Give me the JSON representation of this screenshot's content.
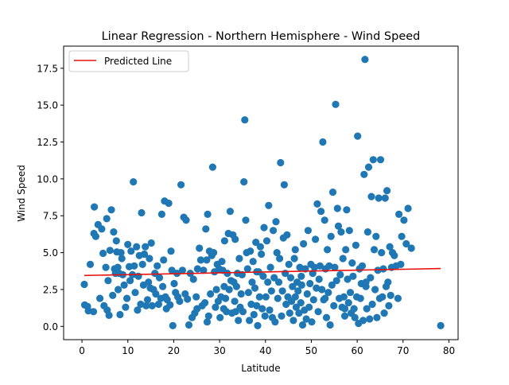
{
  "chart_data": {
    "type": "scatter",
    "title": "Linear Regression - Northern Hemisphere - Wind Speed",
    "xlabel": "Latitude",
    "ylabel": "Wind Speed",
    "xlim": [
      -4,
      82
    ],
    "ylim": [
      -0.9,
      19.0
    ],
    "xticks": [
      0,
      10,
      20,
      30,
      40,
      50,
      60,
      70,
      80
    ],
    "yticks": [
      0.0,
      2.5,
      5.0,
      7.5,
      10.0,
      12.5,
      15.0,
      17.5
    ],
    "xtick_labels": [
      "0",
      "10",
      "20",
      "30",
      "40",
      "50",
      "60",
      "70",
      "80"
    ],
    "ytick_labels": [
      "0.0",
      "2.5",
      "5.0",
      "7.5",
      "10.0",
      "12.5",
      "15.0",
      "17.5"
    ],
    "grid": false,
    "legend": {
      "location": "top-left",
      "entries": [
        "Predicted Line"
      ]
    },
    "marker_color": "#1f77b4",
    "line_color": "#e8130f",
    "regression_line": {
      "name": "Predicted Line",
      "x": [
        0.5,
        78.2
      ],
      "y": [
        3.45,
        3.92
      ]
    },
    "points": [
      [
        0.5,
        2.85
      ],
      [
        0.6,
        1.45
      ],
      [
        1.2,
        1.35
      ],
      [
        1.4,
        1.05
      ],
      [
        1.8,
        4.2
      ],
      [
        2.5,
        1.0
      ],
      [
        2.6,
        6.3
      ],
      [
        2.7,
        8.1
      ],
      [
        3.0,
        6.1
      ],
      [
        3.5,
        6.9
      ],
      [
        3.9,
        1.9
      ],
      [
        4.3,
        6.6
      ],
      [
        4.6,
        4.95
      ],
      [
        4.8,
        1.4
      ],
      [
        5.2,
        4.0
      ],
      [
        5.4,
        7.3
      ],
      [
        5.5,
        1.1
      ],
      [
        5.7,
        3.1
      ],
      [
        5.9,
        0.75
      ],
      [
        6.1,
        5.15
      ],
      [
        6.4,
        7.9
      ],
      [
        6.7,
        2.1
      ],
      [
        6.9,
        6.4
      ],
      [
        7.1,
        3.9
      ],
      [
        7.3,
        3.6
      ],
      [
        7.5,
        5.8
      ],
      [
        7.6,
        5.05
      ],
      [
        7.8,
        4.0
      ],
      [
        7.9,
        2.5
      ],
      [
        8.1,
        3.6
      ],
      [
        8.3,
        0.8
      ],
      [
        8.5,
        5.0
      ],
      [
        8.7,
        4.6
      ],
      [
        8.9,
        3.5
      ],
      [
        9.2,
        2.8
      ],
      [
        9.5,
        1.3
      ],
      [
        9.8,
        1.9
      ],
      [
        10.0,
        5.55
      ],
      [
        10.3,
        4.05
      ],
      [
        10.5,
        3.1
      ],
      [
        10.7,
        5.1
      ],
      [
        11.0,
        3.5
      ],
      [
        11.2,
        9.8
      ],
      [
        11.4,
        4.1
      ],
      [
        11.6,
        2.3
      ],
      [
        11.9,
        5.4
      ],
      [
        12.1,
        1.1
      ],
      [
        12.3,
        3.4
      ],
      [
        12.5,
        4.8
      ],
      [
        12.8,
        1.5
      ],
      [
        13.0,
        7.7
      ],
      [
        13.2,
        4.2
      ],
      [
        13.4,
        2.8
      ],
      [
        13.6,
        4.9
      ],
      [
        13.8,
        5.4
      ],
      [
        14.0,
        1.4
      ],
      [
        14.3,
        1.8
      ],
      [
        14.5,
        3.0
      ],
      [
        14.7,
        4.6
      ],
      [
        14.9,
        2.6
      ],
      [
        15.1,
        5.65
      ],
      [
        15.3,
        1.4
      ],
      [
        15.6,
        2.5
      ],
      [
        15.9,
        3.6
      ],
      [
        16.1,
        2.2
      ],
      [
        16.4,
        4.1
      ],
      [
        16.7,
        1.5
      ],
      [
        16.9,
        3.3
      ],
      [
        17.2,
        1.9
      ],
      [
        17.4,
        7.6
      ],
      [
        17.6,
        2.7
      ],
      [
        17.8,
        4.5
      ],
      [
        18.0,
        8.5
      ],
      [
        18.2,
        2.0
      ],
      [
        18.4,
        1.2
      ],
      [
        18.6,
        1.8
      ],
      [
        18.9,
        8.35
      ],
      [
        19.2,
        1.45
      ],
      [
        19.4,
        5.1
      ],
      [
        19.6,
        3.8
      ],
      [
        19.8,
        0.05
      ],
      [
        20.1,
        2.9
      ],
      [
        20.4,
        2.3
      ],
      [
        20.7,
        3.6
      ],
      [
        20.9,
        2.0
      ],
      [
        21.3,
        1.7
      ],
      [
        21.6,
        9.6
      ],
      [
        21.9,
        3.8
      ],
      [
        22.2,
        7.4
      ],
      [
        22.5,
        2.2
      ],
      [
        22.7,
        7.2
      ],
      [
        23.0,
        1.85
      ],
      [
        23.3,
        0.1
      ],
      [
        23.6,
        3.6
      ],
      [
        24.0,
        0.6
      ],
      [
        24.3,
        3.2
      ],
      [
        24.6,
        0.9
      ],
      [
        24.9,
        2.0
      ],
      [
        25.2,
        3.9
      ],
      [
        25.6,
        5.3
      ],
      [
        25.9,
        4.5
      ],
      [
        26.2,
        1.4
      ],
      [
        26.5,
        3.8
      ],
      [
        26.8,
        1.6
      ],
      [
        27.0,
        6.6
      ],
      [
        27.2,
        4.5
      ],
      [
        27.4,
        7.6
      ],
      [
        27.6,
        0.7
      ],
      [
        27.8,
        5.1
      ],
      [
        28.0,
        2.2
      ],
      [
        28.3,
        4.8
      ],
      [
        28.5,
        10.8
      ],
      [
        28.7,
        5.0
      ],
      [
        28.9,
        3.7
      ],
      [
        29.1,
        1.3
      ],
      [
        29.3,
        2.5
      ],
      [
        29.5,
        4.2
      ],
      [
        29.7,
        1.7
      ],
      [
        29.9,
        3.9
      ],
      [
        30.1,
        0.6
      ],
      [
        30.3,
        2.0
      ],
      [
        30.5,
        4.4
      ],
      [
        30.7,
        3.8
      ],
      [
        30.9,
        1.2
      ],
      [
        31.1,
        5.8
      ],
      [
        31.3,
        1.9
      ],
      [
        31.5,
        1.0
      ],
      [
        31.7,
        3.6
      ],
      [
        31.9,
        6.3
      ],
      [
        32.1,
        2.5
      ],
      [
        32.3,
        7.8
      ],
      [
        32.5,
        3.1
      ],
      [
        32.7,
        0.9
      ],
      [
        32.9,
        6.2
      ],
      [
        33.1,
        3.0
      ],
      [
        33.3,
        1.7
      ],
      [
        33.5,
        1.0
      ],
      [
        33.7,
        2.7
      ],
      [
        33.9,
        3.6
      ],
      [
        34.1,
        0.4
      ],
      [
        34.3,
        4.6
      ],
      [
        34.5,
        1.3
      ],
      [
        34.7,
        2.2
      ],
      [
        34.9,
        3.5
      ],
      [
        35.1,
        1.0
      ],
      [
        35.3,
        9.8
      ],
      [
        35.5,
        14.0
      ],
      [
        35.7,
        7.2
      ],
      [
        35.9,
        5.0
      ],
      [
        36.1,
        3.9
      ],
      [
        36.3,
        2.3
      ],
      [
        36.5,
        0.4
      ],
      [
        36.7,
        5.1
      ],
      [
        36.9,
        1.5
      ],
      [
        37.1,
        3.0
      ],
      [
        37.3,
        4.4
      ],
      [
        37.5,
        0.8
      ],
      [
        37.7,
        2.6
      ],
      [
        37.9,
        5.7
      ],
      [
        38.1,
        1.4
      ],
      [
        38.3,
        0.05
      ],
      [
        38.5,
        3.7
      ],
      [
        38.7,
        2.0
      ],
      [
        38.9,
        5.4
      ],
      [
        39.1,
        4.9
      ],
      [
        39.3,
        1.2
      ],
      [
        39.5,
        3.4
      ],
      [
        39.7,
        6.7
      ],
      [
        39.9,
        0.7
      ],
      [
        40.1,
        2.0
      ],
      [
        40.3,
        5.8
      ],
      [
        40.5,
        3.0
      ],
      [
        40.7,
        8.2
      ],
      [
        40.9,
        1.1
      ],
      [
        41.1,
        4.0
      ],
      [
        41.3,
        2.4
      ],
      [
        41.5,
        0.6
      ],
      [
        41.7,
        6.5
      ],
      [
        41.9,
        3.3
      ],
      [
        42.1,
        0.3
      ],
      [
        42.3,
        7.1
      ],
      [
        42.5,
        5.0
      ],
      [
        42.7,
        1.9
      ],
      [
        42.9,
        3.0
      ],
      [
        43.1,
        4.6
      ],
      [
        43.3,
        11.1
      ],
      [
        43.5,
        0.7
      ],
      [
        43.7,
        2.4
      ],
      [
        43.9,
        6.0
      ],
      [
        44.1,
        9.6
      ],
      [
        44.3,
        3.6
      ],
      [
        44.5,
        1.5
      ],
      [
        44.7,
        6.2
      ],
      [
        44.9,
        2.0
      ],
      [
        45.1,
        4.2
      ],
      [
        45.3,
        0.9
      ],
      [
        45.5,
        3.3
      ],
      [
        45.7,
        1.7
      ],
      [
        45.9,
        2.7
      ],
      [
        46.1,
        0.4
      ],
      [
        46.3,
        4.6
      ],
      [
        46.5,
        2.0
      ],
      [
        46.7,
        1.3
      ],
      [
        46.9,
        3.0
      ],
      [
        47.1,
        2.4
      ],
      [
        47.3,
        0.9
      ],
      [
        47.5,
        4.0
      ],
      [
        47.7,
        1.6
      ],
      [
        47.9,
        2.8
      ],
      [
        48.1,
        0.1
      ],
      [
        48.3,
        5.6
      ],
      [
        48.5,
        1.1
      ],
      [
        48.7,
        3.9
      ],
      [
        48.9,
        0.5
      ],
      [
        49.1,
        2.2
      ],
      [
        49.3,
        6.5
      ],
      [
        49.5,
        1.3
      ],
      [
        49.7,
        2.9
      ],
      [
        49.9,
        4.2
      ],
      [
        50.1,
        0.3
      ],
      [
        50.3,
        3.6
      ],
      [
        50.5,
        1.8
      ],
      [
        50.7,
        4.0
      ],
      [
        50.9,
        5.9
      ],
      [
        51.1,
        2.6
      ],
      [
        51.3,
        8.3
      ],
      [
        51.5,
        1.0
      ],
      [
        51.7,
        3.2
      ],
      [
        51.9,
        4.1
      ],
      [
        52.1,
        7.8
      ],
      [
        52.3,
        2.5
      ],
      [
        52.5,
        12.5
      ],
      [
        52.7,
        1.8
      ],
      [
        52.9,
        7.2
      ],
      [
        53.1,
        3.9
      ],
      [
        53.3,
        0.6
      ],
      [
        53.5,
        5.2
      ],
      [
        53.7,
        2.3
      ],
      [
        53.9,
        4.1
      ],
      [
        54.1,
        0.1
      ],
      [
        54.3,
        6.1
      ],
      [
        54.5,
        2.8
      ],
      [
        54.7,
        9.1
      ],
      [
        54.9,
        1.4
      ],
      [
        55.1,
        4.0
      ],
      [
        55.3,
        15.05
      ],
      [
        55.5,
        3.1
      ],
      [
        55.7,
        8.0
      ],
      [
        55.9,
        6.8
      ],
      [
        56.1,
        1.9
      ],
      [
        56.3,
        3.5
      ],
      [
        56.5,
        6.4
      ],
      [
        56.7,
        1.3
      ],
      [
        56.9,
        4.6
      ],
      [
        57.1,
        2.0
      ],
      [
        57.3,
        0.7
      ],
      [
        57.5,
        5.2
      ],
      [
        57.7,
        7.9
      ],
      [
        57.9,
        3.2
      ],
      [
        58.1,
        1.6
      ],
      [
        58.3,
        6.5
      ],
      [
        58.5,
        2.3
      ],
      [
        58.7,
        0.9
      ],
      [
        58.9,
        4.3
      ],
      [
        59.1,
        3.4
      ],
      [
        59.3,
        1.2
      ],
      [
        59.5,
        0.6
      ],
      [
        59.7,
        5.5
      ],
      [
        59.9,
        2.0
      ],
      [
        60.1,
        12.9
      ],
      [
        60.3,
        0.2
      ],
      [
        60.5,
        3.9
      ],
      [
        60.7,
        1.9
      ],
      [
        60.9,
        2.9
      ],
      [
        61.1,
        4.1
      ],
      [
        61.3,
        0.4
      ],
      [
        61.5,
        10.3
      ],
      [
        61.7,
        18.1
      ],
      [
        61.9,
        2.7
      ],
      [
        62.1,
        1.2
      ],
      [
        62.3,
        6.4
      ],
      [
        62.5,
        10.8
      ],
      [
        62.7,
        0.5
      ],
      [
        62.9,
        3.3
      ],
      [
        63.1,
        8.8
      ],
      [
        63.3,
        1.5
      ],
      [
        63.5,
        11.3
      ],
      [
        63.7,
        5.2
      ],
      [
        63.9,
        2.5
      ],
      [
        64.1,
        6.1
      ],
      [
        64.3,
        0.6
      ],
      [
        64.5,
        3.8
      ],
      [
        64.7,
        8.7
      ],
      [
        64.9,
        1.9
      ],
      [
        65.1,
        11.3
      ],
      [
        65.3,
        5.0
      ],
      [
        65.5,
        2.0
      ],
      [
        65.7,
        3.9
      ],
      [
        65.9,
        0.9
      ],
      [
        66.1,
        8.7
      ],
      [
        66.3,
        2.7
      ],
      [
        66.5,
        9.2
      ],
      [
        66.7,
        3.0
      ],
      [
        66.9,
        1.4
      ],
      [
        67.1,
        5.4
      ],
      [
        67.3,
        2.1
      ],
      [
        67.5,
        4.0
      ],
      [
        67.7,
        5.0
      ],
      [
        68.1,
        4.8
      ],
      [
        68.5,
        4.1
      ],
      [
        68.9,
        1.9
      ],
      [
        69.1,
        7.6
      ],
      [
        69.5,
        4.2
      ],
      [
        69.7,
        6.1
      ],
      [
        70.2,
        7.2
      ],
      [
        70.7,
        5.6
      ],
      [
        71.1,
        8.0
      ],
      [
        71.8,
        5.3
      ],
      [
        78.2,
        0.05
      ],
      [
        33.4,
        5.9
      ],
      [
        38.1,
        3.7
      ],
      [
        57.3,
        1.2
      ],
      [
        61.9,
        3.0
      ],
      [
        25.1,
        1.2
      ],
      [
        47.8,
        3.4
      ],
      [
        27.3,
        0.3
      ],
      [
        31.0,
        2.7
      ],
      [
        53.0,
        1.9
      ],
      [
        46.5,
        5.2
      ]
    ]
  }
}
